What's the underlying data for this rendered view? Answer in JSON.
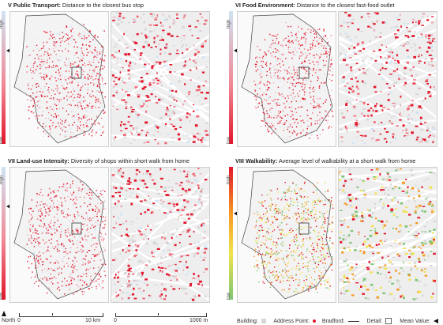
{
  "panels": [
    {
      "id": "p5",
      "title_bold": "V Public Transport:",
      "title_rest": " Distance to the closest bus stop",
      "scheme": "blue-red",
      "mean_fraction": 0.3
    },
    {
      "id": "p6",
      "title_bold": "VI Food Environment:",
      "title_rest": " Distance to the closest fast-food outlet",
      "scheme": "blue-red",
      "mean_fraction": 0.3
    },
    {
      "id": "p7",
      "title_bold": "VII Land-use Intensity:",
      "title_rest": " Diversity of shops within short walk from home",
      "scheme": "blue-red",
      "mean_fraction": 0.3
    },
    {
      "id": "p8",
      "title_bold": "VIII Walkability:",
      "title_rest": " Average level of walkability at a short walk from home",
      "scheme": "rainbow",
      "mean_fraction": 0.35
    }
  ],
  "colorbar": {
    "high": "high",
    "low": "low"
  },
  "colors": {
    "high_blue": "#cfe3f3",
    "low_red": "#e3162b",
    "rainbow": [
      "#e3162b",
      "#f59a23",
      "#f2e34a",
      "#7cc576"
    ],
    "building": "#d6d6d6",
    "address_point": "#e3162b"
  },
  "footer": {
    "north": "North",
    "scale1_start": "0",
    "scale1_end": "10 km",
    "scale2_start": "0",
    "scale2_end": "1000 m",
    "legend_building": "Building:",
    "legend_address": "Address Point:",
    "legend_bradford": "Bradford:",
    "legend_detail": "Detail:",
    "legend_mean": "Mean Value:"
  }
}
